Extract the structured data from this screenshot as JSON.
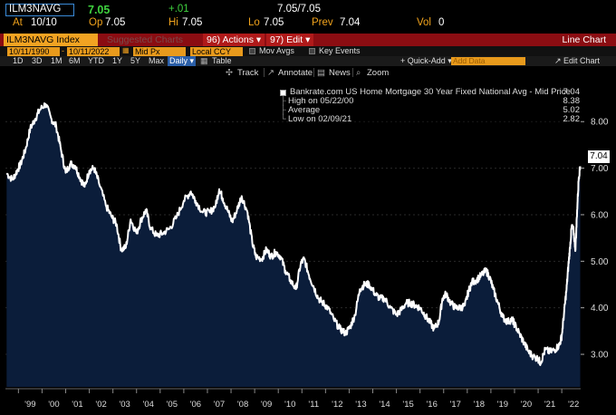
{
  "quote": {
    "ticker": "ILM3NAVG",
    "last": "7.05",
    "change": "+.01",
    "last_range": "7.05/7.05",
    "at_label": "At",
    "at_date": "10/10",
    "open_label": "Op",
    "open_value": "7.05",
    "high_label": "Hi",
    "high_value": "7.05",
    "low_label": "Lo",
    "low_value": "7.05",
    "prev_label": "Prev",
    "prev_value": "7.04",
    "vol_label": "Vol",
    "vol_value": "0"
  },
  "title_bar": {
    "index_label": "ILM3NAVG Index",
    "faded_label": "Suggested Charts",
    "actions_label": "96) Actions ▾",
    "edit_label": "97) Edit ▾",
    "view_name": "Line Chart"
  },
  "controls": {
    "start_date": "10/11/1990",
    "end_date": "10/11/2022",
    "price_field": "Mid Px",
    "currency_field": "Local CCY",
    "mov_avgs_label": "Mov Avgs",
    "key_events_label": "Key Events"
  },
  "range_buttons": [
    "1D",
    "3D",
    "1M",
    "6M",
    "YTD",
    "1Y",
    "5Y",
    "Max"
  ],
  "frequency": "Daily ▾",
  "table_label": "Table",
  "quick_add_label": "+ Quick-Add ▾",
  "add_data_placeholder": "Add Data",
  "edit_chart_label": "↗ Edit Chart",
  "tools": {
    "track": "Track",
    "annotate": "Annotate",
    "news": "News",
    "zoom": "Zoom"
  },
  "legend": {
    "series_label": "Bankrate.com US Home Mortgage 30 Year Fixed National Avg - Mid Price",
    "series_value": "7.04",
    "high_label": "High on 05/22/00",
    "high_value": "8.38",
    "average_label": "Average",
    "average_value": "5.02",
    "low_label": "Low on 02/09/21",
    "low_value": "2.82"
  },
  "colors": {
    "title_bar": "#8b0d12",
    "accent_orange": "#f2a322",
    "line": "#ffffff",
    "area_fill": "#0b1d3a",
    "price_up": "#3fd23f"
  },
  "chart_data": {
    "type": "area",
    "title": "",
    "xlabel": "",
    "ylabel": "",
    "ylim": [
      2.3,
      8.9
    ],
    "xlim": [
      1998.45,
      2022.8
    ],
    "y_ticks": [
      "3.00",
      "4.00",
      "5.00",
      "6.00",
      "7.00",
      "8.00"
    ],
    "x_ticks": [
      "'99",
      "'00",
      "'01",
      "'02",
      "'03",
      "'04",
      "'05",
      "'06",
      "'07",
      "'08",
      "'09",
      "'10",
      "'11",
      "'12",
      "'13",
      "'14",
      "'15",
      "'16",
      "'17",
      "'18",
      "'19",
      "'20",
      "'21",
      "'22"
    ],
    "last_value_label": "7.04",
    "grid": true,
    "legend_position": "top-right",
    "series": [
      {
        "name": "Bankrate.com US Home Mortgage 30 Year Fixed National Avg - Mid Price",
        "x": [
          1998.5,
          1998.75,
          1998.95,
          1999.1,
          1999.3,
          1999.5,
          1999.7,
          1999.9,
          2000.15,
          2000.4,
          2000.6,
          2000.8,
          2001.0,
          2001.2,
          2001.4,
          2001.6,
          2001.8,
          2002.0,
          2002.2,
          2002.4,
          2002.7,
          2002.95,
          2003.15,
          2003.35,
          2003.55,
          2003.75,
          2004.0,
          2004.2,
          2004.4,
          2004.6,
          2004.85,
          2005.1,
          2005.4,
          2005.7,
          2006.0,
          2006.3,
          2006.5,
          2006.8,
          2007.1,
          2007.35,
          2007.5,
          2007.65,
          2007.85,
          2008.05,
          2008.25,
          2008.45,
          2008.7,
          2008.9,
          2009.05,
          2009.3,
          2009.5,
          2009.7,
          2009.9,
          2010.1,
          2010.3,
          2010.5,
          2010.75,
          2010.95,
          2011.1,
          2011.3,
          2011.5,
          2011.7,
          2011.9,
          2012.1,
          2012.35,
          2012.6,
          2012.85,
          2013.05,
          2013.25,
          2013.45,
          2013.65,
          2013.85,
          2014.1,
          2014.3,
          2014.5,
          2014.75,
          2015.0,
          2015.2,
          2015.4,
          2015.6,
          2015.8,
          2016.0,
          2016.2,
          2016.4,
          2016.6,
          2016.8,
          2016.95,
          2017.1,
          2017.3,
          2017.5,
          2017.7,
          2017.9,
          2018.05,
          2018.2,
          2018.4,
          2018.6,
          2018.8,
          2018.95,
          2019.1,
          2019.3,
          2019.5,
          2019.7,
          2019.9,
          2020.0,
          2020.2,
          2020.4,
          2020.6,
          2020.8,
          2021.0,
          2021.1,
          2021.3,
          2021.5,
          2021.7,
          2021.9,
          2022.0,
          2022.1,
          2022.2,
          2022.28,
          2022.35,
          2022.42,
          2022.5,
          2022.58,
          2022.65,
          2022.72,
          2022.78
        ],
        "values": [
          6.89,
          6.75,
          6.95,
          7.1,
          7.4,
          7.85,
          8.05,
          8.25,
          8.38,
          8.05,
          7.9,
          7.4,
          6.9,
          7.1,
          7.05,
          6.8,
          6.6,
          6.95,
          7.0,
          6.7,
          6.2,
          5.95,
          5.8,
          5.25,
          5.3,
          5.9,
          5.6,
          5.9,
          6.1,
          5.7,
          5.55,
          5.6,
          5.7,
          5.95,
          6.3,
          6.5,
          6.3,
          6.05,
          6.05,
          6.2,
          6.55,
          6.35,
          6.1,
          5.85,
          6.1,
          6.4,
          6.05,
          5.4,
          5.1,
          5.05,
          5.25,
          5.1,
          5.2,
          5.1,
          4.8,
          4.6,
          4.4,
          4.95,
          5.05,
          4.7,
          4.45,
          4.2,
          4.1,
          4.0,
          3.75,
          3.55,
          3.45,
          3.6,
          3.85,
          4.4,
          4.5,
          4.5,
          4.3,
          4.2,
          4.2,
          4.0,
          3.85,
          3.95,
          4.1,
          4.1,
          4.05,
          4.0,
          3.85,
          3.7,
          3.55,
          3.7,
          4.2,
          4.3,
          4.1,
          4.0,
          4.0,
          4.05,
          4.35,
          4.55,
          4.6,
          4.7,
          4.8,
          4.65,
          4.4,
          4.1,
          3.8,
          3.7,
          3.75,
          3.65,
          3.45,
          3.25,
          3.05,
          2.95,
          2.9,
          2.82,
          3.1,
          3.05,
          3.1,
          3.2,
          3.4,
          3.9,
          4.4,
          4.9,
          5.3,
          5.75,
          5.65,
          5.25,
          6.1,
          6.8,
          7.04
        ]
      }
    ]
  }
}
